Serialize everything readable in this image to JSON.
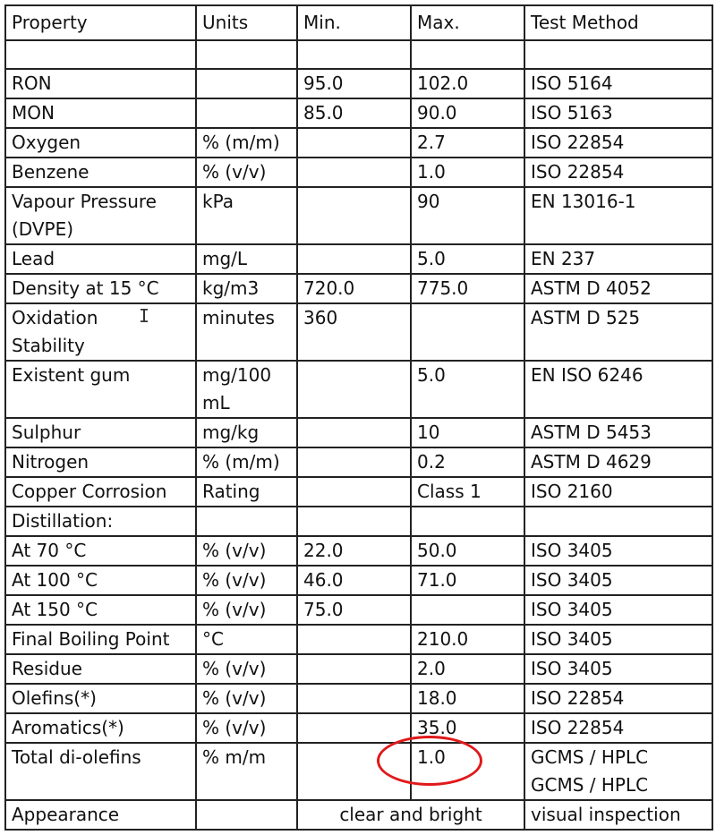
{
  "headers": [
    "Property",
    "Units",
    "Min.",
    "Max.",
    "Test Method"
  ],
  "rows": [
    {
      "property": "",
      "units": "",
      "min": "",
      "max": "",
      "method": ""
    },
    {
      "property": "RON",
      "units": "",
      "min": "95.0",
      "max": "102.0",
      "method": "ISO 5164"
    },
    {
      "property": "MON",
      "units": "",
      "min": "85.0",
      "max": "90.0",
      "method": "ISO 5163"
    },
    {
      "property": "Oxygen",
      "units": "% (m/m)",
      "min": "",
      "max": "2.7",
      "method": "ISO 22854"
    },
    {
      "property": "Benzene",
      "units": "% (v/v)",
      "min": "",
      "max": "1.0",
      "method": "ISO 22854"
    },
    {
      "property": "Vapour Pressure\n(DVPE)",
      "units": "kPa",
      "min": "",
      "max": "90",
      "method": "EN 13016-1",
      "tall": true
    },
    {
      "property": "Lead",
      "units": "mg/L",
      "min": "",
      "max": "5.0",
      "method": "EN 237"
    },
    {
      "property": "Density at 15 °C",
      "units": "kg/m3",
      "min": "720.0",
      "max": "775.0",
      "method": "ASTM D 4052"
    },
    {
      "property": "Oxidation\nStability",
      "units": "minutes",
      "min": "360",
      "max": "",
      "method": "ASTM D 525",
      "tall": true
    },
    {
      "property": "Existent gum",
      "units": "mg/100\nmL",
      "min": "",
      "max": "5.0",
      "method": "EN ISO 6246",
      "tall": true
    },
    {
      "property": "Sulphur",
      "units": "mg/kg",
      "min": "",
      "max": "10",
      "method": "ASTM D 5453"
    },
    {
      "property": "Nitrogen",
      "units": "% (m/m)",
      "min": "",
      "max": "0.2",
      "method": "ASTM D 4629"
    },
    {
      "property": "Copper Corrosion",
      "units": "Rating",
      "min": "",
      "max": "Class 1",
      "method": "ISO 2160"
    },
    {
      "property": "Distillation:",
      "units": "",
      "min": "",
      "max": "",
      "method": ""
    },
    {
      "property": "At 70 °C",
      "units": "% (v/v)",
      "min": "22.0",
      "max": "50.0",
      "method": "ISO 3405"
    },
    {
      "property": "At 100 °C",
      "units": "% (v/v)",
      "min": "46.0",
      "max": "71.0",
      "method": "ISO 3405"
    },
    {
      "property": "At 150 °C",
      "units": "% (v/v)",
      "min": "75.0",
      "max": "",
      "method": "ISO 3405"
    },
    {
      "property": "Final Boiling Point",
      "units": "°C",
      "min": "",
      "max": "210.0",
      "method": "ISO 3405"
    },
    {
      "property": "Residue",
      "units": "% (v/v)",
      "min": "",
      "max": "2.0",
      "method": "ISO 3405"
    },
    {
      "property": "Olefins(*)",
      "units": "% (v/v)",
      "min": "",
      "max": "18.0",
      "method": "ISO 22854"
    },
    {
      "property": "Aromatics(*)",
      "units": "% (v/v)",
      "min": "",
      "max": "35.0",
      "method": "ISO 22854"
    },
    {
      "property": "Total di-olefins",
      "units": "% m/m",
      "min": "",
      "max": "1.0",
      "method": "GCMS / HPLC\nGCMS / HPLC",
      "tall": true
    }
  ],
  "appearance": {
    "property": "Appearance",
    "value": "clear and bright",
    "method": "visual inspection"
  },
  "highlight_color": "#e0191b"
}
